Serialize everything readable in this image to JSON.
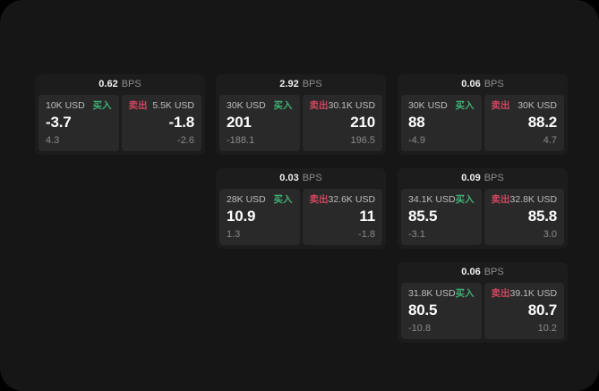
{
  "labels": {
    "bps": "BPS",
    "buy": "买入",
    "sell": "卖出"
  },
  "colors": {
    "outer_background": "#000000",
    "window_background": "#161616",
    "card_background": "#1c1c1c",
    "pane_background": "#292929",
    "buy_green": "#3fb074",
    "sell_red": "#cc4760",
    "price_white": "#fdfdfd",
    "muted_gray": "#8a8a8a"
  },
  "cards": [
    {
      "bps": "0.62",
      "buy": {
        "amount": "10K USD",
        "price": "-3.7",
        "delta": "4.3"
      },
      "sell": {
        "amount": "5.5K USD",
        "price": "-1.8",
        "delta": "-2.6"
      }
    },
    {
      "bps": "2.92",
      "buy": {
        "amount": "30K USD",
        "price": "201",
        "delta": "-188.1"
      },
      "sell": {
        "amount": "30.1K USD",
        "price": "210",
        "delta": "196.5"
      }
    },
    {
      "bps": "0.06",
      "buy": {
        "amount": "30K USD",
        "price": "88",
        "delta": "-4.9"
      },
      "sell": {
        "amount": "30K USD",
        "price": "88.2",
        "delta": "4.7"
      }
    },
    {
      "bps": "0.03",
      "buy": {
        "amount": "28K USD",
        "price": "10.9",
        "delta": "1.3"
      },
      "sell": {
        "amount": "32.6K USD",
        "price": "11",
        "delta": "-1.8"
      }
    },
    {
      "bps": "0.09",
      "buy": {
        "amount": "34.1K USD",
        "price": "85.5",
        "delta": "-3.1"
      },
      "sell": {
        "amount": "32.8K USD",
        "price": "85.8",
        "delta": "3.0"
      }
    },
    {
      "bps": "0.06",
      "buy": {
        "amount": "31.8K USD",
        "price": "80.5",
        "delta": "-10.8"
      },
      "sell": {
        "amount": "39.1K USD",
        "price": "80.7",
        "delta": "10.2"
      }
    }
  ]
}
